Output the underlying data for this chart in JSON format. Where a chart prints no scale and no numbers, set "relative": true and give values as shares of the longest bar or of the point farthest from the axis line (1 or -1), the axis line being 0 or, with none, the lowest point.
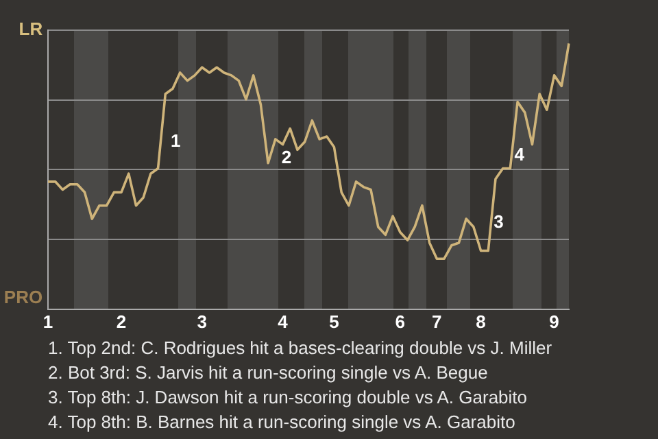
{
  "chart_data": {
    "type": "line",
    "relative": true,
    "categories": [
      "1",
      null,
      null,
      null,
      null,
      null,
      null,
      null,
      null,
      null,
      "2",
      null,
      null,
      null,
      null,
      null,
      null,
      null,
      null,
      null,
      null,
      "3",
      null,
      null,
      null,
      null,
      null,
      null,
      null,
      null,
      null,
      null,
      "4",
      null,
      null,
      null,
      null,
      null,
      null,
      "5",
      null,
      null,
      null,
      null,
      null,
      null,
      null,
      null,
      "6",
      null,
      null,
      null,
      null,
      "7",
      null,
      null,
      null,
      null,
      null,
      "8",
      null,
      null,
      null,
      null,
      null,
      null,
      null,
      null,
      null,
      "9",
      null,
      null
    ],
    "series": [
      {
        "color": "#cfb47a",
        "values": [
          0.48,
          0.48,
          0.45,
          0.47,
          0.47,
          0.44,
          0.34,
          0.39,
          0.39,
          0.44,
          0.44,
          0.51,
          0.39,
          0.42,
          0.51,
          0.53,
          0.81,
          0.83,
          0.89,
          0.86,
          0.88,
          0.91,
          0.89,
          0.91,
          0.89,
          0.88,
          0.86,
          0.79,
          0.88,
          0.77,
          0.55,
          0.64,
          0.62,
          0.68,
          0.6,
          0.63,
          0.71,
          0.64,
          0.65,
          0.61,
          0.44,
          0.39,
          0.48,
          0.46,
          0.45,
          0.31,
          0.28,
          0.35,
          0.29,
          0.26,
          0.31,
          0.39,
          0.25,
          0.19,
          0.19,
          0.24,
          0.25,
          0.34,
          0.31,
          0.22,
          0.22,
          0.49,
          0.53,
          0.53,
          0.78,
          0.74,
          0.62,
          0.81,
          0.75,
          0.88,
          0.84,
          1
        ]
      }
    ],
    "grid": "y",
    "annotations": [
      "LR",
      "PRO",
      "1",
      "2",
      "3",
      "4",
      "1. Top 2nd: C. Rodrigues hit a bases-clearing double vs J. Miller",
      "2. Bot 3rd: S. Jarvis hit a run-scoring single vs A. Begue",
      "3. Top 8th: J. Dawson hit a run-scoring double vs A. Garabito",
      "4. Top 8th: B. Barnes hit a run-scoring single vs A. Garabito"
    ],
    "legend": false,
    "marker": "none"
  }
}
